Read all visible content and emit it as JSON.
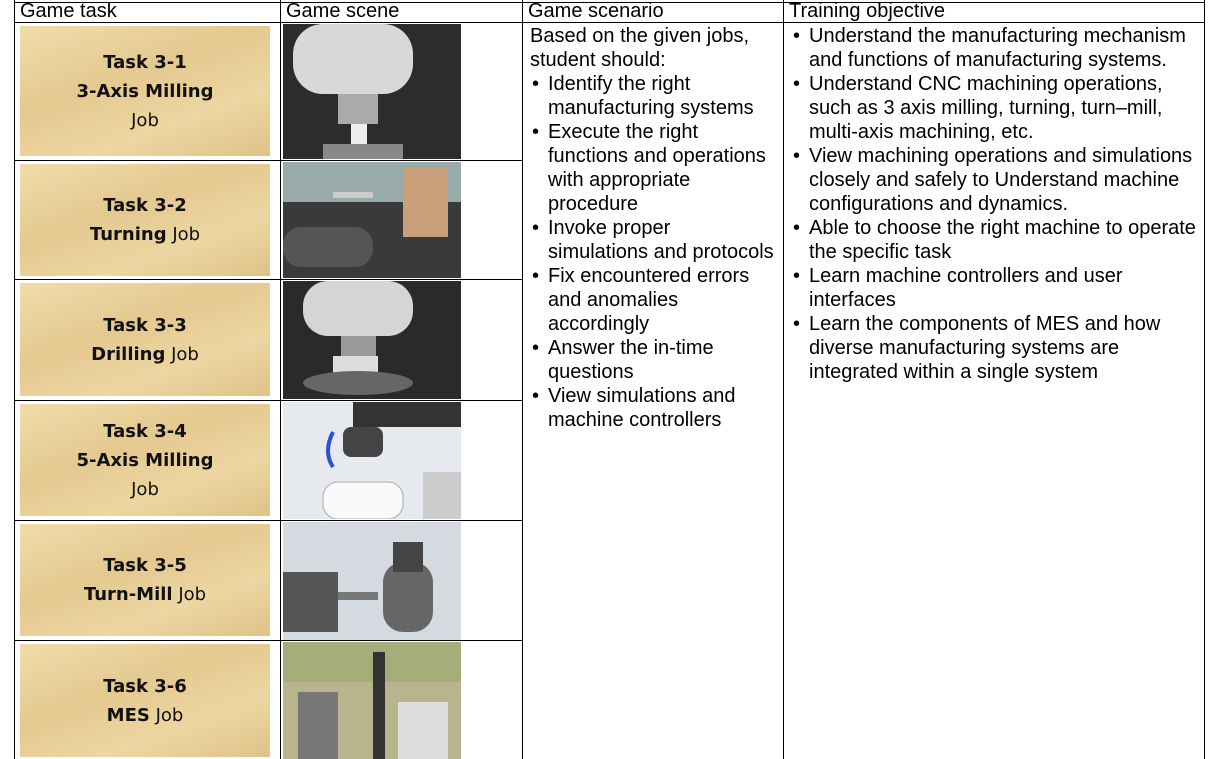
{
  "header": {
    "columns": [
      "Game task",
      "Game scene",
      "Game scenario",
      "Training objective"
    ]
  },
  "tasks": [
    {
      "number": "Task 3-1",
      "name": "3-Axis Milling",
      "job": "Job"
    },
    {
      "number": "Task 3-2",
      "name": "Turning",
      "job": "Job"
    },
    {
      "number": "Task 3-3",
      "name": "Drilling",
      "job": "Job"
    },
    {
      "number": "Task 3-4",
      "name": "5-Axis Milling",
      "job": "Job"
    },
    {
      "number": "Task 3-5",
      "name": "Turn-Mill",
      "job": "Job"
    },
    {
      "number": "Task 3-6",
      "name": "MES",
      "job": "Job"
    }
  ],
  "scenario": {
    "intro": "Based on the given jobs, student should:",
    "bullets": [
      "Identify the right manufacturing systems",
      "Execute the right functions and operations with appropriate procedure",
      "Invoke proper simulations and protocols",
      "Fix encountered errors and anomalies accordingly",
      "Answer the in-time questions",
      "View simulations and machine controllers"
    ]
  },
  "objectives": [
    "Understand the manufacturing mechanism and functions of manufacturing systems.",
    "Understand CNC machining operations, such as 3 axis milling, turning, turn–mill, multi-axis machining, etc.",
    "View machining operations and simulations closely and safely to Understand machine configurations and dynamics.",
    "Able to choose the right machine to operate the specific task",
    "Learn machine controllers and user interfaces",
    "Learn the components of MES and how diverse manufacturing systems are integrated within a single system"
  ]
}
